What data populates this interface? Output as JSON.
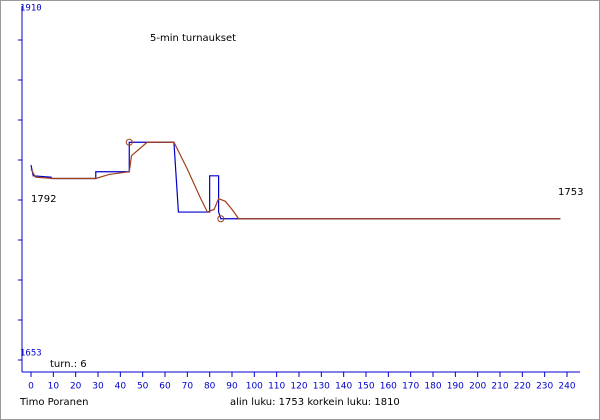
{
  "chart_data": {
    "type": "line",
    "title": "5-min turnaukset",
    "xlim": [
      0,
      240
    ],
    "xticks": [
      0,
      10,
      20,
      30,
      40,
      50,
      60,
      70,
      80,
      90,
      100,
      110,
      120,
      130,
      140,
      150,
      160,
      170,
      180,
      190,
      200,
      210,
      220,
      230,
      240
    ],
    "ylim": [
      1653,
      1910
    ],
    "yticks": [
      1653,
      1910
    ],
    "series": [
      {
        "color": "#0000cc",
        "x": [
          0,
          1,
          9,
          9,
          29,
          29,
          44,
          44,
          64,
          66,
          80,
          80,
          84,
          84,
          85,
          237
        ],
        "values": [
          1793,
          1785,
          1784,
          1783,
          1783,
          1788,
          1788,
          1810,
          1810,
          1758,
          1758,
          1785,
          1785,
          1758,
          1753,
          1753
        ]
      },
      {
        "color": "#a0401a",
        "x": [
          0,
          2,
          10,
          29,
          35,
          44,
          45,
          52,
          64,
          70,
          76,
          79,
          82,
          84,
          87,
          90,
          93,
          237
        ],
        "values": [
          1790,
          1784,
          1783,
          1783,
          1786,
          1788,
          1800,
          1810,
          1810,
          1790,
          1768,
          1758,
          1760,
          1768,
          1766,
          1760,
          1753,
          1753
        ]
      }
    ],
    "highlights": [
      {
        "x": 44,
        "y": 1810
      },
      {
        "x": 85,
        "y": 1753
      }
    ],
    "annotations": {
      "left": "1792",
      "right": "1753",
      "count": "turn.: 6"
    },
    "footer": {
      "author": "Timo Poranen",
      "summary": "alin luku: 1753  korkein luku: 1810"
    }
  }
}
